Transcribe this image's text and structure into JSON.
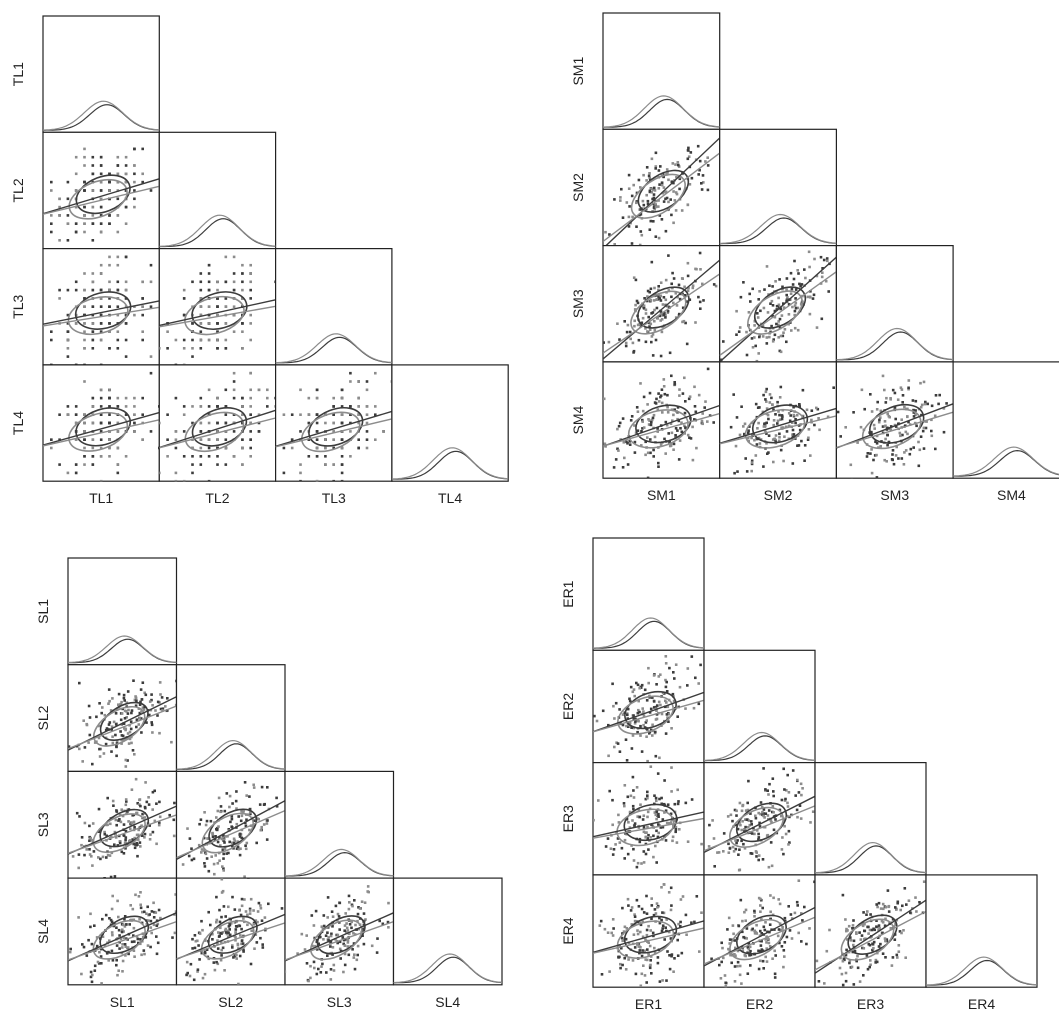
{
  "colors": {
    "group_a": "#3c3c3c",
    "group_b": "#8c8c8c",
    "frame": "#222222",
    "background": "#ffffff"
  },
  "chart_data": [
    {
      "type": "scatter",
      "subtype": "pairs-lower-triangle",
      "variables": [
        "TL1",
        "TL2",
        "TL3",
        "TL4"
      ],
      "data_points_discrete": true,
      "diagonal": "density",
      "upper_triangle": "empty",
      "ellipse": true,
      "regression_lines": true,
      "pairs": [
        {
          "x": "TL1",
          "y": "TL2",
          "correlation": 0.35,
          "slope": 0.3
        },
        {
          "x": "TL1",
          "y": "TL3",
          "correlation": 0.22,
          "slope": 0.2
        },
        {
          "x": "TL2",
          "y": "TL3",
          "correlation": 0.25,
          "slope": 0.22
        },
        {
          "x": "TL1",
          "y": "TL4",
          "correlation": 0.3,
          "slope": 0.28
        },
        {
          "x": "TL2",
          "y": "TL4",
          "correlation": 0.33,
          "slope": 0.32
        },
        {
          "x": "TL3",
          "y": "TL4",
          "correlation": 0.35,
          "slope": 0.3
        }
      ]
    },
    {
      "type": "scatter",
      "subtype": "pairs-lower-triangle",
      "variables": [
        "SM1",
        "SM2",
        "SM3",
        "SM4"
      ],
      "data_points_discrete": false,
      "diagonal": "density",
      "upper_triangle": "empty",
      "ellipse": true,
      "regression_lines": true,
      "pairs": [
        {
          "x": "SM1",
          "y": "SM2",
          "correlation": 0.62,
          "slope": 0.95
        },
        {
          "x": "SM1",
          "y": "SM3",
          "correlation": 0.55,
          "slope": 0.85
        },
        {
          "x": "SM2",
          "y": "SM3",
          "correlation": 0.58,
          "slope": 0.9
        },
        {
          "x": "SM1",
          "y": "SM4",
          "correlation": 0.25,
          "slope": 0.35
        },
        {
          "x": "SM2",
          "y": "SM4",
          "correlation": 0.28,
          "slope": 0.3
        },
        {
          "x": "SM3",
          "y": "SM4",
          "correlation": 0.35,
          "slope": 0.38
        }
      ]
    },
    {
      "type": "scatter",
      "subtype": "pairs-lower-triangle",
      "variables": [
        "SL1",
        "SL2",
        "SL3",
        "SL4"
      ],
      "data_points_discrete": false,
      "diagonal": "density",
      "upper_triangle": "empty",
      "ellipse": true,
      "regression_lines": true,
      "pairs": [
        {
          "x": "SL1",
          "y": "SL2",
          "correlation": 0.55,
          "slope": 0.5
        },
        {
          "x": "SL1",
          "y": "SL3",
          "correlation": 0.5,
          "slope": 0.45
        },
        {
          "x": "SL2",
          "y": "SL3",
          "correlation": 0.55,
          "slope": 0.55
        },
        {
          "x": "SL1",
          "y": "SL4",
          "correlation": 0.5,
          "slope": 0.45
        },
        {
          "x": "SL2",
          "y": "SL4",
          "correlation": 0.48,
          "slope": 0.42
        },
        {
          "x": "SL3",
          "y": "SL4",
          "correlation": 0.55,
          "slope": 0.45
        }
      ]
    },
    {
      "type": "scatter",
      "subtype": "pairs-lower-triangle",
      "variables": [
        "ER1",
        "ER2",
        "ER3",
        "ER4"
      ],
      "data_points_discrete": false,
      "diagonal": "density",
      "upper_triangle": "empty",
      "ellipse": true,
      "regression_lines": true,
      "pairs": [
        {
          "x": "ER1",
          "y": "ER2",
          "correlation": 0.35,
          "slope": 0.35
        },
        {
          "x": "ER1",
          "y": "ER3",
          "correlation": 0.22,
          "slope": 0.22
        },
        {
          "x": "ER2",
          "y": "ER3",
          "correlation": 0.48,
          "slope": 0.5
        },
        {
          "x": "ER1",
          "y": "ER4",
          "correlation": 0.3,
          "slope": 0.28
        },
        {
          "x": "ER2",
          "y": "ER4",
          "correlation": 0.5,
          "slope": 0.52
        },
        {
          "x": "ER3",
          "y": "ER4",
          "correlation": 0.55,
          "slope": 0.65
        }
      ]
    }
  ]
}
